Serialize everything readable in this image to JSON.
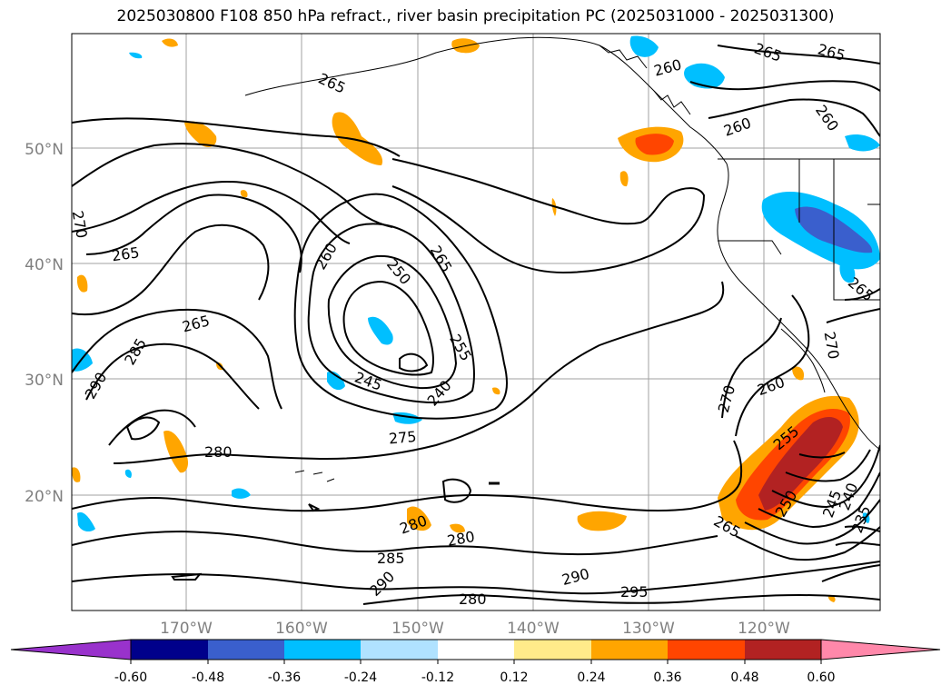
{
  "title": "2025030800 F108 850 hPa refract., river basin precipitation PC (2025031000 - 2025031300)",
  "map": {
    "lat_labels": [
      "50°N",
      "40°N",
      "30°N",
      "20°N"
    ],
    "lon_labels": [
      "170°W",
      "160°W",
      "150°W",
      "140°W",
      "130°W",
      "120°W"
    ],
    "contour_labels": [
      "270",
      "265",
      "285",
      "290",
      "265",
      "280",
      "260",
      "250",
      "265",
      "255",
      "240",
      "245",
      "275",
      "280",
      "285",
      "290",
      "280",
      "290",
      "295",
      "280",
      "265",
      "260",
      "260",
      "265",
      "265",
      "260",
      "270",
      "260",
      "255",
      "250",
      "245",
      "240",
      "235",
      "265",
      "270",
      "265"
    ]
  },
  "colorbar": {
    "tick_labels": [
      "-0.60",
      "-0.48",
      "-0.36",
      "-0.24",
      "-0.12",
      "0.12",
      "0.24",
      "0.36",
      "0.48",
      "0.60"
    ],
    "colors": [
      "#9932cc",
      "#00008b",
      "#3a5fcd",
      "#00bfff",
      "#b0e2ff",
      "#ffffff",
      "#ffeb8a",
      "#ffa500",
      "#ff4500",
      "#b22222",
      "#ff88aa"
    ]
  }
}
